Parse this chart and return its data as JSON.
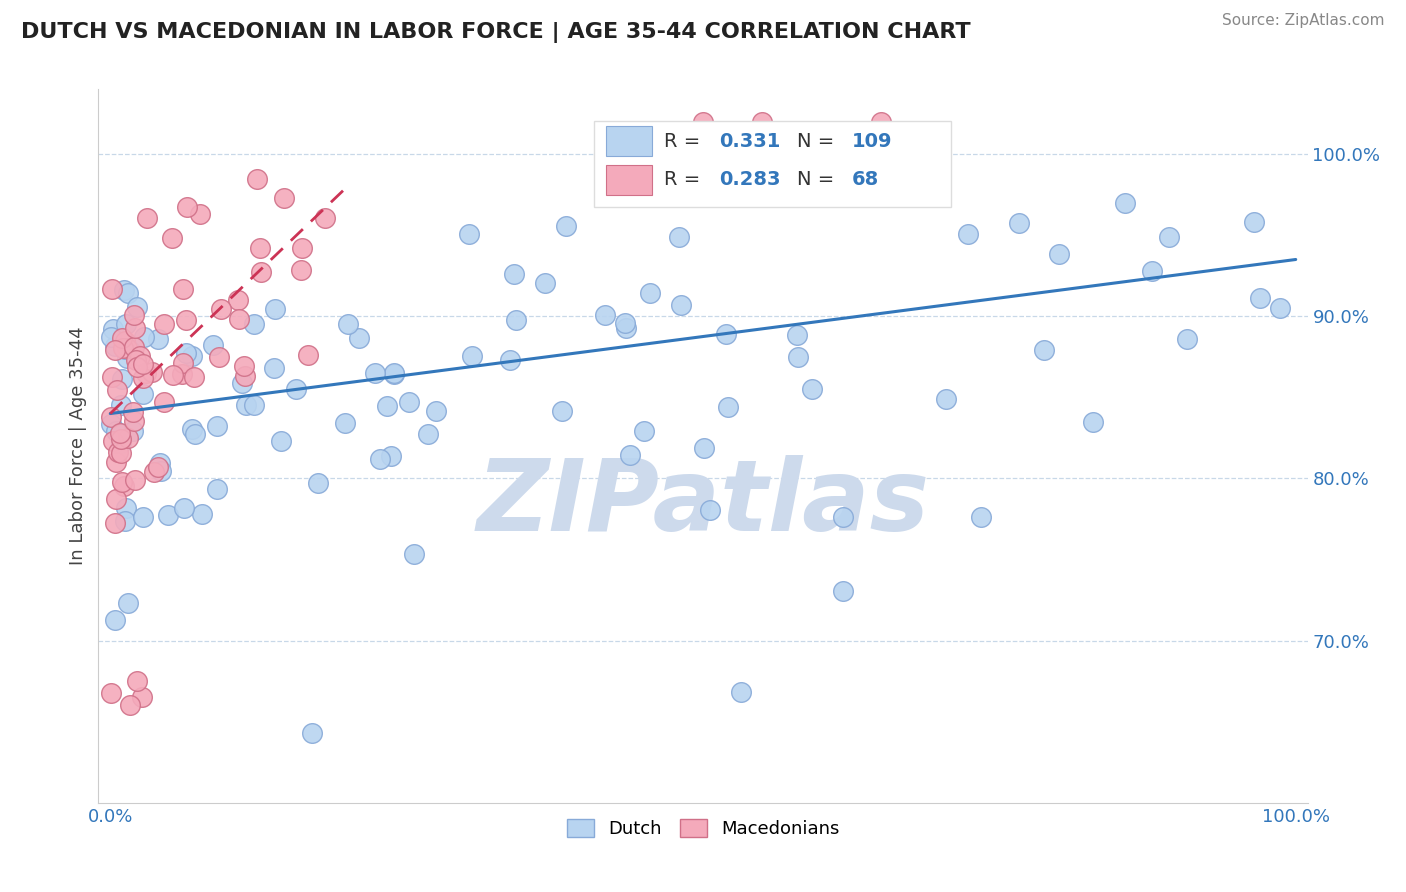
{
  "title": "DUTCH VS MACEDONIAN IN LABOR FORCE | AGE 35-44 CORRELATION CHART",
  "source": "Source: ZipAtlas.com",
  "ylabel": "In Labor Force | Age 35-44",
  "dutch_R": 0.331,
  "dutch_N": 109,
  "mace_R": 0.283,
  "mace_N": 68,
  "dutch_color": "#b8d4f0",
  "dutch_edge": "#88aad8",
  "mace_color": "#f4aabb",
  "mace_edge": "#d07088",
  "dutch_line_color": "#3377bb",
  "mace_line_color": "#cc3355",
  "watermark": "ZIPatlas",
  "watermark_color": "#cddaec",
  "background_color": "#ffffff",
  "grid_color": "#c8d8e8",
  "tick_color": "#3377bb",
  "ylabel_color": "#444444",
  "title_color": "#222222",
  "source_color": "#888888",
  "xlim": [
    -0.01,
    1.01
  ],
  "ylim": [
    0.6,
    1.04
  ],
  "yticks": [
    0.7,
    0.8,
    0.9,
    1.0
  ],
  "ytick_labels": [
    "70.0%",
    "80.0%",
    "90.0%",
    "100.0%"
  ],
  "xtick_labels": [
    "0.0%",
    "100.0%"
  ],
  "dutch_line_x0": 0.0,
  "dutch_line_x1": 1.0,
  "dutch_line_y0": 0.84,
  "dutch_line_y1": 0.935,
  "mace_line_x0": 0.0,
  "mace_line_x1": 0.2,
  "mace_line_y0": 0.84,
  "mace_line_y1": 0.98,
  "mace_line_dashed": true
}
